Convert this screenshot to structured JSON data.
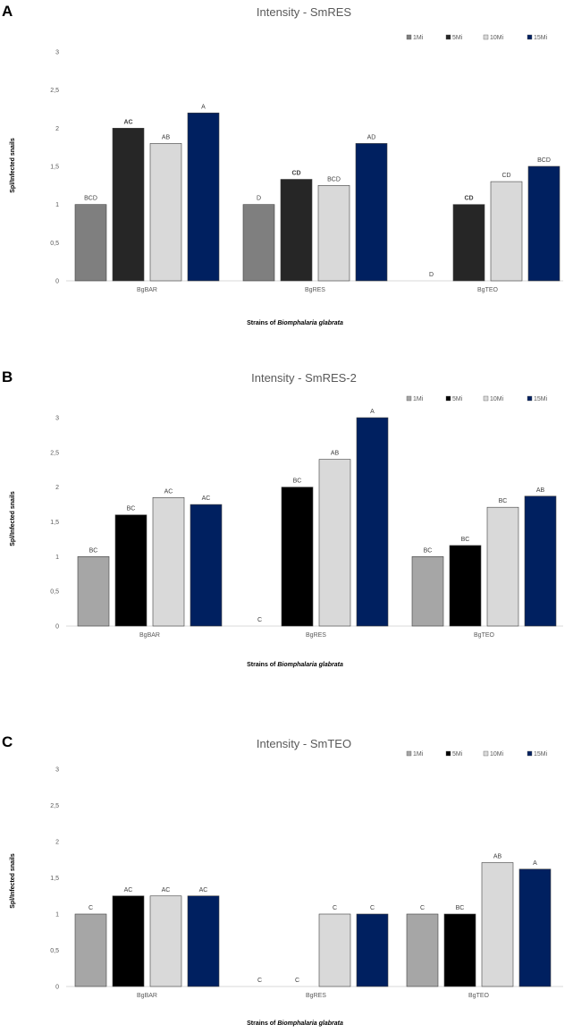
{
  "chart_data": [
    {
      "type": "bar",
      "panel": "A",
      "title": "Intensity - SmRES",
      "ylabel": "Spl/Infected snails",
      "xlabel_prefix": "Strains of ",
      "xlabel_italic": "Biomphalaria glabrata",
      "yticks": [
        "0",
        "0,5",
        "1",
        "1,5",
        "2",
        "2,5",
        "3"
      ],
      "ylim": [
        0,
        3
      ],
      "categories": [
        "BgBAR",
        "BgRES",
        "BgTEO"
      ],
      "series": [
        {
          "name": "1Mi",
          "color": "#7f7f7f",
          "values": [
            1,
            1,
            0
          ],
          "labels": [
            "BCD",
            "D",
            "D"
          ],
          "bold": [
            false,
            false,
            false
          ]
        },
        {
          "name": "5Mi",
          "color": "#262626",
          "values": [
            2,
            1.33,
            1
          ],
          "labels": [
            "AC",
            "CD",
            "CD"
          ],
          "bold": [
            true,
            true,
            true
          ]
        },
        {
          "name": "10Mi",
          "color": "#d9d9d9",
          "values": [
            1.8,
            1.25,
            1.3
          ],
          "labels": [
            "AB",
            "BCD",
            "CD"
          ],
          "bold": [
            false,
            false,
            false
          ]
        },
        {
          "name": "15Mi",
          "color": "#002060",
          "values": [
            2.2,
            1.8,
            1.5
          ],
          "labels": [
            "A",
            "AD",
            "BCD"
          ],
          "bold": [
            false,
            false,
            false
          ]
        }
      ]
    },
    {
      "type": "bar",
      "panel": "B",
      "title": "Intensity - SmRES-2",
      "ylabel": "Spl/Infected snails",
      "xlabel_prefix": "Strains of ",
      "xlabel_italic": "Biomphalaria glabrata",
      "yticks": [
        "0",
        "0,5",
        "1",
        "1,5",
        "2",
        "2,5",
        "3"
      ],
      "ylim": [
        0,
        3
      ],
      "categories": [
        "BgBAR",
        "BgRES",
        "BgTEO"
      ],
      "series": [
        {
          "name": "1Mi",
          "color": "#a6a6a6",
          "values": [
            1,
            0,
            1
          ],
          "labels": [
            "BC",
            "C",
            "BC"
          ],
          "bold": [
            false,
            false,
            false
          ]
        },
        {
          "name": "5Mi",
          "color": "#000000",
          "values": [
            1.6,
            2,
            1.16
          ],
          "labels": [
            "BC",
            "BC",
            "BC"
          ],
          "bold": [
            false,
            false,
            false
          ]
        },
        {
          "name": "10Mi",
          "color": "#d9d9d9",
          "values": [
            1.85,
            2.4,
            1.71
          ],
          "labels": [
            "AC",
            "AB",
            "BC"
          ],
          "bold": [
            false,
            false,
            false
          ]
        },
        {
          "name": "15Mi",
          "color": "#002060",
          "values": [
            1.75,
            3,
            1.87
          ],
          "labels": [
            "AC",
            "A",
            "AB"
          ],
          "bold": [
            false,
            false,
            false
          ]
        }
      ]
    },
    {
      "type": "bar",
      "panel": "C",
      "title": "Intensity - SmTEO",
      "ylabel": "Spl/Infected snails",
      "xlabel_prefix": "Strains of ",
      "xlabel_italic": "Biomphalaria glabrata",
      "yticks": [
        "0",
        "0,5",
        "1",
        "1,5",
        "2",
        "2,5",
        "3"
      ],
      "ylim": [
        0,
        3
      ],
      "categories": [
        "BgBAR",
        "BgRES",
        "BgTEO"
      ],
      "series": [
        {
          "name": "1Mi",
          "color": "#a6a6a6",
          "values": [
            1,
            0,
            1
          ],
          "labels": [
            "C",
            "C",
            "C"
          ],
          "bold": [
            false,
            false,
            false
          ]
        },
        {
          "name": "5Mi",
          "color": "#000000",
          "values": [
            1.25,
            0,
            1
          ],
          "labels": [
            "AC",
            "C",
            "BC"
          ],
          "bold": [
            false,
            false,
            false
          ]
        },
        {
          "name": "10Mi",
          "color": "#d9d9d9",
          "values": [
            1.25,
            1,
            1.71
          ],
          "labels": [
            "AC",
            "C",
            "AB"
          ],
          "bold": [
            false,
            false,
            false
          ]
        },
        {
          "name": "15Mi",
          "color": "#002060",
          "values": [
            1.25,
            1,
            1.62
          ],
          "labels": [
            "AC",
            "C",
            "A"
          ],
          "bold": [
            false,
            false,
            false
          ]
        }
      ]
    }
  ]
}
